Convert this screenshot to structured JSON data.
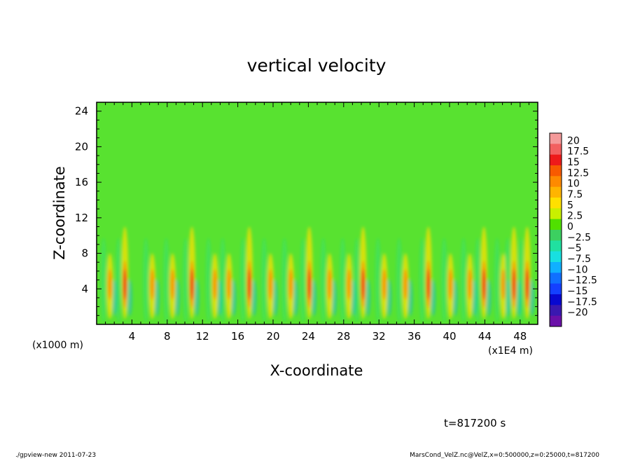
{
  "chart_data": {
    "type": "heatmap",
    "title": "vertical velocity",
    "xlabel": "X-coordinate",
    "ylabel": "Z-coordinate",
    "x_unit_left": "(x1000 m)",
    "x_unit_right": "(x1E4 m)",
    "xlim": [
      0,
      50
    ],
    "ylim": [
      0,
      25
    ],
    "x_ticks": [
      4,
      8,
      12,
      16,
      20,
      24,
      28,
      32,
      36,
      40,
      44,
      48
    ],
    "y_ticks": [
      4,
      8,
      12,
      16,
      20,
      24
    ],
    "colorbar": {
      "levels": [
        20,
        17.5,
        15,
        12.5,
        10,
        7.5,
        5,
        2.5,
        0,
        -2.5,
        -5,
        -7.5,
        -10,
        -12.5,
        -15,
        -17.5,
        -20
      ],
      "labels": [
        "20",
        "17.5",
        "15",
        "12.5",
        "10",
        "7.5",
        "5",
        "2.5",
        "0",
        "−2.5",
        "−5",
        "−7.5",
        "−10",
        "−12.5",
        "−15",
        "−17.5",
        "−20"
      ],
      "colors": [
        "#f49a9a",
        "#f26060",
        "#ee1a1a",
        "#f85a00",
        "#fe8a00",
        "#ffb400",
        "#ffe000",
        "#c8f000",
        "#50e000",
        "#3cd060",
        "#20e0a0",
        "#18e0e0",
        "#10b0ff",
        "#1070ff",
        "#1440ff",
        "#0808d0",
        "#3a18b0",
        "#6a10a8"
      ]
    },
    "updraft_columns_x": [
      1.5,
      3.2,
      6.3,
      8.6,
      10.8,
      13.4,
      15.0,
      17.3,
      19.7,
      22.0,
      24.1,
      26.4,
      28.6,
      30.2,
      32.6,
      35.0,
      37.6,
      40.1,
      42.3,
      43.9,
      46.1,
      47.3,
      48.8
    ]
  },
  "annotations": {
    "time": "t=817200 s",
    "footer_left": "./gpview-new   2011-07-23",
    "footer_right": "MarsCond_VelZ.nc@VelZ,x=0:500000,z=0:25000,t=817200"
  }
}
